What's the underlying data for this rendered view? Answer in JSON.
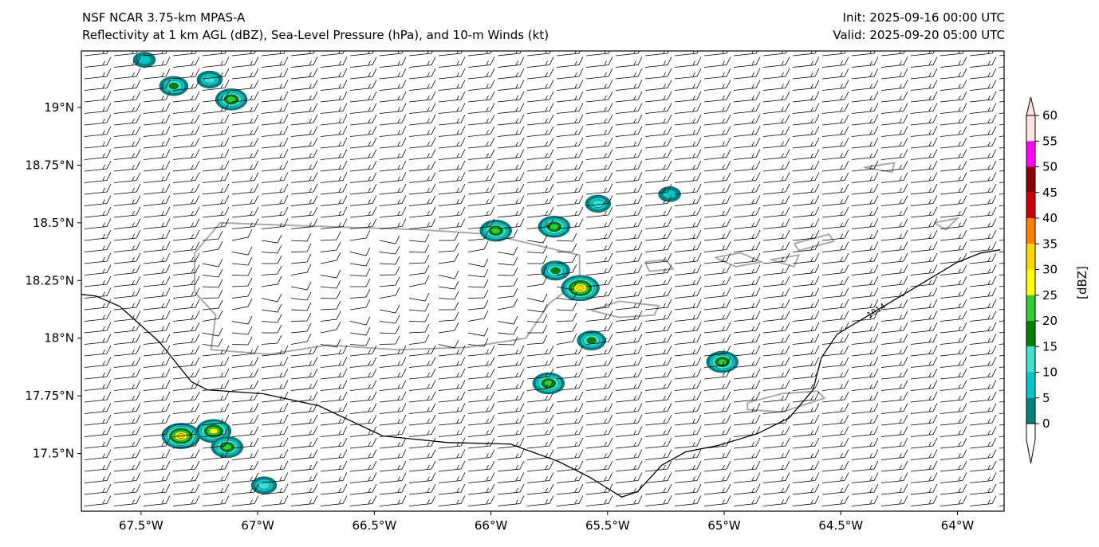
{
  "header": {
    "title_line1": "NSF NCAR 3.75-km MPAS-A",
    "title_line2": "Reflectivity at 1 km AGL (dBZ), Sea-Level Pressure (hPa), and 10-m Winds (kt)",
    "init": "Init: 2025-09-16 00:00 UTC",
    "valid": "Valid: 2025-09-20 05:00 UTC"
  },
  "chart_data": {
    "type": "map",
    "extent": {
      "lon": [
        -67.756,
        -63.8
      ],
      "lat": [
        17.25,
        19.245
      ]
    },
    "lon_ticks": [
      {
        "v": -67.5,
        "label": "67.5°W"
      },
      {
        "v": -67,
        "label": "67°W"
      },
      {
        "v": -66.5,
        "label": "66.5°W"
      },
      {
        "v": -66,
        "label": "66°W"
      },
      {
        "v": -65.5,
        "label": "65.5°W"
      },
      {
        "v": -65,
        "label": "65°W"
      },
      {
        "v": -64.5,
        "label": "64.5°W"
      },
      {
        "v": -64,
        "label": "64°W"
      }
    ],
    "lat_ticks": [
      {
        "v": 19,
        "label": "19°N"
      },
      {
        "v": 18.75,
        "label": "18.75°N"
      },
      {
        "v": 18.5,
        "label": "18.5°N"
      },
      {
        "v": 18.25,
        "label": "18.25°N"
      },
      {
        "v": 18,
        "label": "18°N"
      },
      {
        "v": 17.75,
        "label": "17.75°N"
      },
      {
        "v": 17.5,
        "label": "17.5°N"
      }
    ],
    "colorbar": {
      "label": "[dBZ]",
      "ticks": [
        "0",
        "5",
        "10",
        "15",
        "20",
        "25",
        "30",
        "35",
        "40",
        "45",
        "50",
        "55",
        "60"
      ],
      "colors": [
        "#008080",
        "#00c8c8",
        "#40e0d0",
        "#008000",
        "#32cd32",
        "#ffff00",
        "#ffd700",
        "#ff7f00",
        "#cc0000",
        "#8b0000",
        "#ff00ff",
        "#ffe4e1"
      ]
    },
    "slp_contours": [
      {
        "level": "1014",
        "points": [
          [
            -67.756,
            18.19
          ],
          [
            -67.694,
            18.183
          ],
          [
            -67.592,
            18.138
          ],
          [
            -67.421,
            17.983
          ],
          [
            -67.284,
            17.811
          ],
          [
            -67.216,
            17.776
          ],
          [
            -66.977,
            17.759
          ],
          [
            -66.738,
            17.707
          ],
          [
            -66.464,
            17.576
          ],
          [
            -66.191,
            17.548
          ],
          [
            -65.917,
            17.541
          ],
          [
            -65.712,
            17.466
          ],
          [
            -65.576,
            17.397
          ],
          [
            -65.439,
            17.311
          ],
          [
            -65.371,
            17.335
          ],
          [
            -65.268,
            17.449
          ],
          [
            -65.165,
            17.507
          ],
          [
            -65.029,
            17.534
          ],
          [
            -64.858,
            17.586
          ],
          [
            -64.721,
            17.655
          ],
          [
            -64.619,
            17.776
          ],
          [
            -64.584,
            17.914
          ],
          [
            -64.516,
            18.017
          ],
          [
            -64.345,
            18.121
          ],
          [
            -64.174,
            18.224
          ],
          [
            -64.003,
            18.328
          ],
          [
            -63.901,
            18.369
          ],
          [
            -63.816,
            18.383
          ]
        ]
      }
    ],
    "reflectivity_cells": [
      {
        "lon": -67.36,
        "lat": 19.093,
        "max_dbz": 15
      },
      {
        "lon": -67.206,
        "lat": 19.121,
        "max_dbz": 10
      },
      {
        "lon": -67.113,
        "lat": 19.035,
        "max_dbz": 20
      },
      {
        "lon": -67.486,
        "lat": 19.207,
        "max_dbz": 5
      },
      {
        "lon": -65.979,
        "lat": 18.466,
        "max_dbz": 20
      },
      {
        "lon": -65.729,
        "lat": 18.483,
        "max_dbz": 20
      },
      {
        "lon": -65.617,
        "lat": 18.217,
        "max_dbz": 30
      },
      {
        "lon": -65.723,
        "lat": 18.293,
        "max_dbz": 15
      },
      {
        "lon": -65.569,
        "lat": 17.99,
        "max_dbz": 15
      },
      {
        "lon": -65.753,
        "lat": 17.804,
        "max_dbz": 20
      },
      {
        "lon": -65.008,
        "lat": 17.897,
        "max_dbz": 20
      },
      {
        "lon": -65.541,
        "lat": 18.583,
        "max_dbz": 10
      },
      {
        "lon": -65.234,
        "lat": 18.624,
        "max_dbz": 5
      },
      {
        "lon": -67.329,
        "lat": 17.576,
        "max_dbz": 30
      },
      {
        "lon": -67.189,
        "lat": 17.597,
        "max_dbz": 25
      },
      {
        "lon": -67.131,
        "lat": 17.528,
        "max_dbz": 20
      },
      {
        "lon": -66.973,
        "lat": 17.362,
        "max_dbz": 10
      }
    ],
    "wind": {
      "typical_speed_kt": 15,
      "direction_from": "E"
    },
    "coastlines": [
      [
        [
          -67.27,
          18.37
        ],
        [
          -67.16,
          18.5
        ],
        [
          -66.9,
          18.49
        ],
        [
          -66.6,
          18.48
        ],
        [
          -66.3,
          18.47
        ],
        [
          -66.0,
          18.45
        ],
        [
          -65.75,
          18.39
        ],
        [
          -65.62,
          18.36
        ],
        [
          -65.62,
          18.25
        ],
        [
          -65.75,
          18.15
        ],
        [
          -65.85,
          18.0
        ],
        [
          -66.1,
          17.96
        ],
        [
          -66.4,
          17.95
        ],
        [
          -66.7,
          17.97
        ],
        [
          -66.95,
          17.93
        ],
        [
          -67.2,
          17.95
        ],
        [
          -67.18,
          18.1
        ],
        [
          -67.27,
          18.2
        ],
        [
          -67.27,
          18.37
        ]
      ],
      [
        [
          -65.57,
          18.12
        ],
        [
          -65.45,
          18.16
        ],
        [
          -65.28,
          18.14
        ],
        [
          -65.3,
          18.1
        ],
        [
          -65.45,
          18.09
        ],
        [
          -65.57,
          18.12
        ]
      ],
      [
        [
          -65.34,
          18.33
        ],
        [
          -65.25,
          18.34
        ],
        [
          -65.22,
          18.3
        ],
        [
          -65.32,
          18.29
        ],
        [
          -65.34,
          18.33
        ]
      ],
      [
        [
          -65.04,
          18.35
        ],
        [
          -64.93,
          18.37
        ],
        [
          -64.84,
          18.33
        ],
        [
          -64.95,
          18.31
        ],
        [
          -65.04,
          18.35
        ]
      ],
      [
        [
          -64.8,
          18.34
        ],
        [
          -64.68,
          18.36
        ],
        [
          -64.7,
          18.31
        ],
        [
          -64.8,
          18.34
        ]
      ],
      [
        [
          -64.9,
          17.72
        ],
        [
          -64.75,
          17.76
        ],
        [
          -64.6,
          17.77
        ],
        [
          -64.57,
          17.74
        ],
        [
          -64.75,
          17.68
        ],
        [
          -64.9,
          17.69
        ],
        [
          -64.9,
          17.72
        ]
      ],
      [
        [
          -64.7,
          18.41
        ],
        [
          -64.55,
          18.45
        ],
        [
          -64.53,
          18.42
        ],
        [
          -64.68,
          18.38
        ],
        [
          -64.7,
          18.41
        ]
      ],
      [
        [
          -64.4,
          18.74
        ],
        [
          -64.27,
          18.76
        ],
        [
          -64.28,
          18.72
        ],
        [
          -64.4,
          18.74
        ]
      ],
      [
        [
          -64.1,
          18.5
        ],
        [
          -64.0,
          18.52
        ],
        [
          -64.05,
          18.47
        ],
        [
          -64.1,
          18.5
        ]
      ]
    ]
  }
}
